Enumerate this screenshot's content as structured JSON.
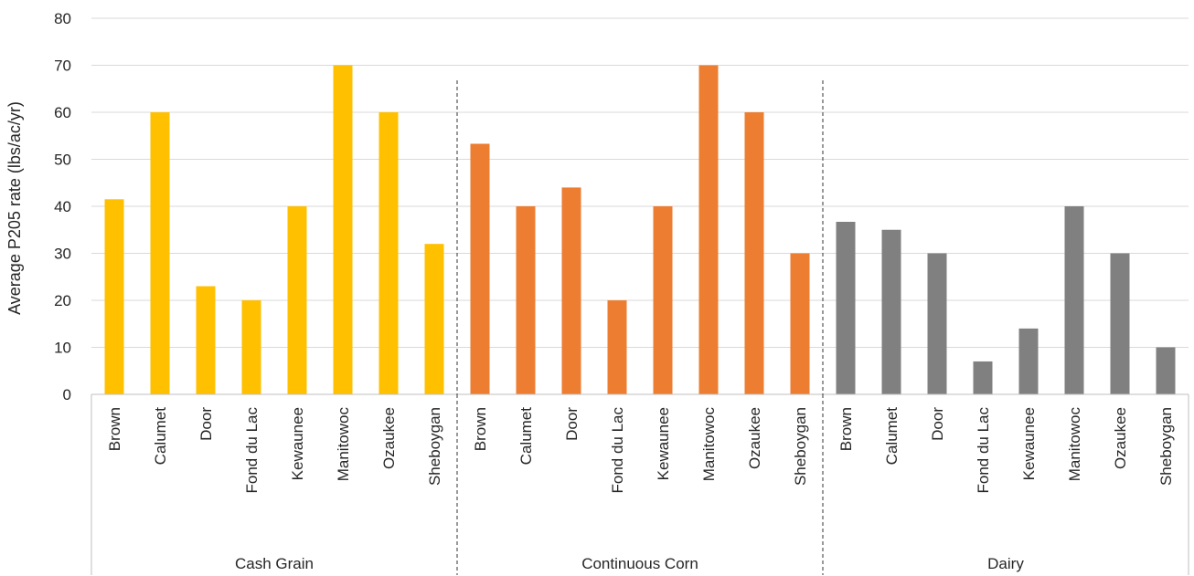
{
  "chart_data": {
    "type": "bar",
    "ylabel": "Average P205 rate (lbs/ac/yr)",
    "ylim": [
      0,
      80
    ],
    "yticks": [
      0,
      10,
      20,
      30,
      40,
      50,
      60,
      70,
      80
    ],
    "grid": true,
    "legend": "none",
    "groups": [
      {
        "name": "Cash Grain",
        "color": "#FFC000",
        "categories": [
          "Brown",
          "Calumet",
          "Door",
          "Fond du Lac",
          "Kewaunee",
          "Manitowoc",
          "Ozaukee",
          "Sheboygan"
        ],
        "values": [
          41.5,
          60,
          23,
          20,
          40,
          70,
          60,
          32
        ]
      },
      {
        "name": "Continuous Corn",
        "color": "#ED7D31",
        "categories": [
          "Brown",
          "Calumet",
          "Door",
          "Fond du Lac",
          "Kewaunee",
          "Manitowoc",
          "Ozaukee",
          "Sheboygan"
        ],
        "values": [
          53.3,
          40,
          44,
          20,
          40,
          70,
          60,
          30
        ]
      },
      {
        "name": "Dairy",
        "color": "#808080",
        "categories": [
          "Brown",
          "Calumet",
          "Door",
          "Fond du Lac",
          "Kewaunee",
          "Manitowoc",
          "Ozaukee",
          "Sheboygan"
        ],
        "values": [
          36.7,
          35,
          30,
          7,
          14,
          40,
          30,
          10
        ]
      }
    ]
  }
}
